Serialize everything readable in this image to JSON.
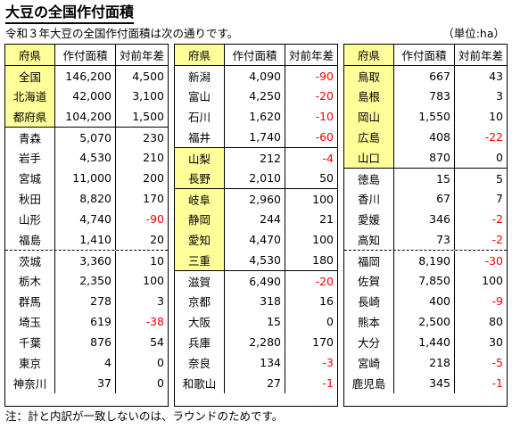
{
  "title": "大豆の全国作付面積",
  "intro": "令和３年大豆の全国作付面積は次の通りです。",
  "unit": "（単位:ha）",
  "note": "注：計と内訳が一致しないのは、ラウンドのためです。",
  "header": {
    "pref": "府県",
    "area": "作付面積",
    "diff": "対前年差"
  },
  "columns": [
    {
      "rows": [
        {
          "p": "全国",
          "a": "146,200",
          "d": "4,500"
        },
        {
          "p": "北海道",
          "a": "42,000",
          "d": "3,100"
        },
        {
          "p": "都府県",
          "a": "104,200",
          "d": "1,500"
        },
        {
          "p": "青森",
          "a": "5,070",
          "d": "230"
        },
        {
          "p": "岩手",
          "a": "4,530",
          "d": "210"
        },
        {
          "p": "宮城",
          "a": "11,000",
          "d": "200"
        },
        {
          "p": "秋田",
          "a": "8,820",
          "d": "170"
        },
        {
          "p": "山形",
          "a": "4,740",
          "d": "-90"
        },
        {
          "p": "福島",
          "a": "1,410",
          "d": "20"
        },
        {
          "p": "茨城",
          "a": "3,360",
          "d": "10"
        },
        {
          "p": "栃木",
          "a": "2,350",
          "d": "100"
        },
        {
          "p": "群馬",
          "a": "278",
          "d": "3"
        },
        {
          "p": "埼玉",
          "a": "619",
          "d": "-38"
        },
        {
          "p": "千葉",
          "a": "876",
          "d": "54"
        },
        {
          "p": "東京",
          "a": "4",
          "d": "0"
        },
        {
          "p": "神奈川",
          "a": "37",
          "d": "0"
        }
      ]
    },
    {
      "rows": [
        {
          "p": "新潟",
          "a": "4,090",
          "d": "-90"
        },
        {
          "p": "富山",
          "a": "4,250",
          "d": "-20"
        },
        {
          "p": "石川",
          "a": "1,620",
          "d": "-10"
        },
        {
          "p": "福井",
          "a": "1,740",
          "d": "-60"
        },
        {
          "p": "山梨",
          "a": "212",
          "d": "-4"
        },
        {
          "p": "長野",
          "a": "2,010",
          "d": "50"
        },
        {
          "p": "岐阜",
          "a": "2,960",
          "d": "100"
        },
        {
          "p": "静岡",
          "a": "244",
          "d": "21"
        },
        {
          "p": "愛知",
          "a": "4,470",
          "d": "100"
        },
        {
          "p": "三重",
          "a": "4,530",
          "d": "180"
        },
        {
          "p": "滋賀",
          "a": "6,490",
          "d": "-20"
        },
        {
          "p": "京都",
          "a": "318",
          "d": "16"
        },
        {
          "p": "大阪",
          "a": "15",
          "d": "0"
        },
        {
          "p": "兵庫",
          "a": "2,280",
          "d": "170"
        },
        {
          "p": "奈良",
          "a": "134",
          "d": "-3"
        },
        {
          "p": "和歌山",
          "a": "27",
          "d": "-1"
        }
      ]
    },
    {
      "rows": [
        {
          "p": "鳥取",
          "a": "667",
          "d": "43"
        },
        {
          "p": "島根",
          "a": "783",
          "d": "3"
        },
        {
          "p": "岡山",
          "a": "1,550",
          "d": "10"
        },
        {
          "p": "広島",
          "a": "408",
          "d": "-22"
        },
        {
          "p": "山口",
          "a": "870",
          "d": "0"
        },
        {
          "p": "徳島",
          "a": "15",
          "d": "5"
        },
        {
          "p": "香川",
          "a": "67",
          "d": "7"
        },
        {
          "p": "愛媛",
          "a": "346",
          "d": "-2"
        },
        {
          "p": "高知",
          "a": "73",
          "d": "-2"
        },
        {
          "p": "福岡",
          "a": "8,190",
          "d": "-30"
        },
        {
          "p": "佐賀",
          "a": "7,850",
          "d": "100"
        },
        {
          "p": "長崎",
          "a": "400",
          "d": "-9"
        },
        {
          "p": "熊本",
          "a": "2,500",
          "d": "80"
        },
        {
          "p": "大分",
          "a": "1,440",
          "d": "30"
        },
        {
          "p": "宮崎",
          "a": "218",
          "d": "-5"
        },
        {
          "p": "鹿児島",
          "a": "345",
          "d": "-1"
        }
      ]
    }
  ],
  "colors": {
    "header_fill": "#ffff99",
    "negative": "#ff0000"
  }
}
